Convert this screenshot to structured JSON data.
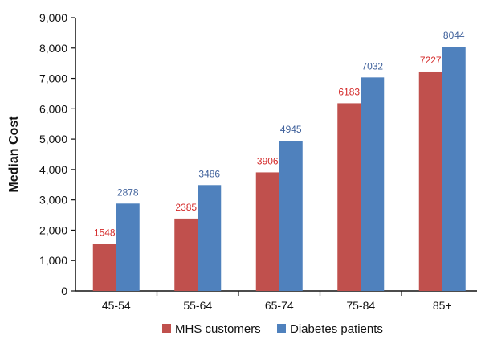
{
  "chart_data": {
    "type": "bar",
    "title": "",
    "xlabel": "",
    "ylabel": "Median Cost",
    "ylim": [
      0,
      9000
    ],
    "ytick_step": 1000,
    "ytick_labels": [
      "0",
      "1,000",
      "2,000",
      "3,000",
      "4,000",
      "5,000",
      "6,000",
      "7,000",
      "8,000",
      "9,000"
    ],
    "categories": [
      "45-54",
      "55-64",
      "65-74",
      "75-84",
      "85+"
    ],
    "grid": false,
    "legend_position": "bottom",
    "series": [
      {
        "name": "MHS customers",
        "color": "#c0504d",
        "label_color": "#d42a2a",
        "values": [
          1548,
          2385,
          3906,
          6183,
          7227
        ]
      },
      {
        "name": "Diabetes patients",
        "color": "#4f81bd",
        "label_color": "#3d5f9a",
        "values": [
          2878,
          3486,
          4945,
          7032,
          8044
        ]
      }
    ]
  }
}
